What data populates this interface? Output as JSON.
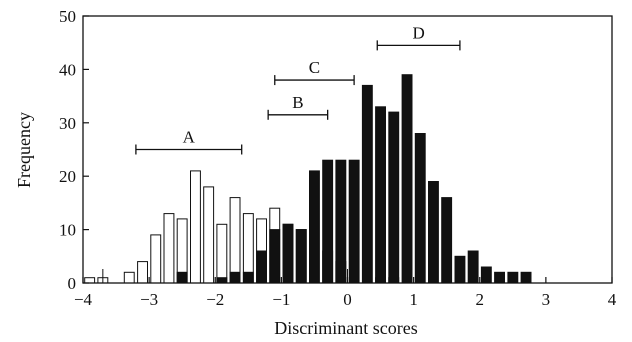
{
  "chart_data": {
    "type": "bar",
    "title": "",
    "xlabel": "Discriminant scores",
    "ylabel": "Frequency",
    "xlim": [
      -4,
      4
    ],
    "ylim": [
      0,
      50
    ],
    "xticks": [
      -4,
      -3,
      -2,
      -1,
      0,
      1,
      2,
      3,
      4
    ],
    "xtick_labels": [
      "−4",
      "−3",
      "−2",
      "−1",
      "0",
      "1",
      "2",
      "3",
      "4"
    ],
    "yticks": [
      0,
      10,
      20,
      30,
      40,
      50
    ],
    "ytick_labels": [
      "0",
      "10",
      "20",
      "30",
      "40",
      "50"
    ],
    "bin_width": 0.2,
    "grid": false,
    "legend": "none",
    "series": [
      {
        "fill": "#ffffff",
        "points": [
          {
            "x": -4.0,
            "y": 1
          },
          {
            "x": -3.8,
            "y": 1
          },
          {
            "x": -3.4,
            "y": 2
          },
          {
            "x": -3.2,
            "y": 4
          },
          {
            "x": -3.0,
            "y": 9
          },
          {
            "x": -2.8,
            "y": 13
          },
          {
            "x": -2.6,
            "y": 12
          },
          {
            "x": -2.4,
            "y": 21
          },
          {
            "x": -2.2,
            "y": 18
          },
          {
            "x": -2.0,
            "y": 11
          },
          {
            "x": -1.8,
            "y": 16
          },
          {
            "x": -1.6,
            "y": 13
          },
          {
            "x": -1.4,
            "y": 12
          },
          {
            "x": -1.2,
            "y": 14
          },
          {
            "x": -1.0,
            "y": 11
          },
          {
            "x": -0.8,
            "y": 10
          },
          {
            "x": -0.4,
            "y": 6
          },
          {
            "x": -0.2,
            "y": 4
          },
          {
            "x": 0.4,
            "y": 1
          },
          {
            "x": 0.6,
            "y": 1
          }
        ]
      },
      {
        "fill": "#111111",
        "points": [
          {
            "x": -2.6,
            "y": 2
          },
          {
            "x": -2.0,
            "y": 1
          },
          {
            "x": -1.8,
            "y": 2
          },
          {
            "x": -1.6,
            "y": 2
          },
          {
            "x": -1.4,
            "y": 6
          },
          {
            "x": -1.2,
            "y": 10
          },
          {
            "x": -1.0,
            "y": 11
          },
          {
            "x": -0.8,
            "y": 10
          },
          {
            "x": -0.6,
            "y": 21
          },
          {
            "x": -0.4,
            "y": 23
          },
          {
            "x": -0.2,
            "y": 23
          },
          {
            "x": 0.0,
            "y": 23
          },
          {
            "x": 0.2,
            "y": 37
          },
          {
            "x": 0.4,
            "y": 33
          },
          {
            "x": 0.6,
            "y": 32
          },
          {
            "x": 0.8,
            "y": 39
          },
          {
            "x": 1.0,
            "y": 28
          },
          {
            "x": 1.2,
            "y": 19
          },
          {
            "x": 1.4,
            "y": 16
          },
          {
            "x": 1.6,
            "y": 5
          },
          {
            "x": 1.8,
            "y": 6
          },
          {
            "x": 2.0,
            "y": 3
          },
          {
            "x": 2.2,
            "y": 2
          },
          {
            "x": 2.4,
            "y": 2
          },
          {
            "x": 2.6,
            "y": 2
          }
        ]
      }
    ],
    "annotations": [
      {
        "label": "A",
        "x_from": -3.2,
        "x_to": -1.6,
        "y": 25
      },
      {
        "label": "B",
        "x_from": -1.2,
        "x_to": -0.3,
        "y": 31.5
      },
      {
        "label": "C",
        "x_from": -1.1,
        "x_to": 0.1,
        "y": 38
      },
      {
        "label": "D",
        "x_from": 0.45,
        "x_to": 1.7,
        "y": 44.5
      }
    ],
    "axis_breaks": [
      -3.7,
      0.0
    ]
  }
}
